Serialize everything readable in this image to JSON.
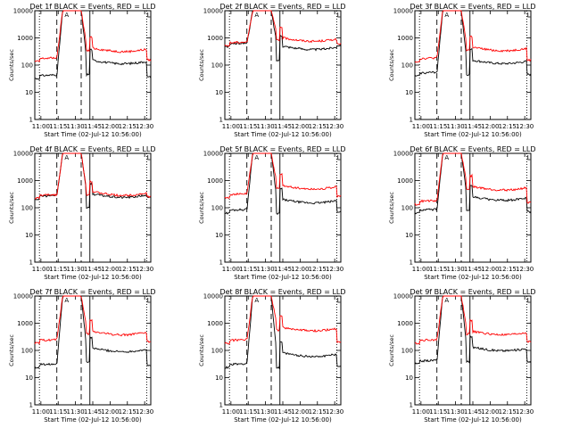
{
  "colors": {
    "events": "#000000",
    "lld": "#ff0000",
    "background": "#ffffff"
  },
  "panel_defaults": {
    "ylabel": "Counts/sec",
    "xlabel": "Start Time (02-Jul-12 10:56:00)",
    "xticks": [
      "11:00",
      "11:15",
      "11:30",
      "11:45",
      "12:00",
      "12:15",
      "12:30"
    ],
    "yticks": [
      "1",
      "10",
      "100",
      "1000",
      "10000"
    ],
    "ylim": [
      1,
      10000
    ],
    "xlim_minutes_after_start": [
      0,
      100
    ]
  },
  "chart_data": [
    {
      "type": "line",
      "title": "Det 1f BLACK = Events, RED = LLD",
      "xlabel": "Start Time (02-Jul-12 10:56:00)",
      "ylabel": "Counts/sec",
      "series": [
        {
          "name": "Events",
          "color": "black",
          "baseline": 40,
          "post_flare": 150
        },
        {
          "name": "LLD",
          "color": "red",
          "baseline": 170,
          "post_flare": 420
        }
      ],
      "peak": 10000,
      "annotation": "A"
    },
    {
      "type": "line",
      "title": "Det 2f BLACK = Events, RED = LLD",
      "xlabel": "Start Time (02-Jul-12 10:56:00)",
      "ylabel": "Counts/sec",
      "series": [
        {
          "name": "Events",
          "color": "black",
          "baseline": 600,
          "post_flare": 500
        },
        {
          "name": "LLD",
          "color": "red",
          "baseline": 650,
          "post_flare": 1000
        }
      ],
      "peak": 10000,
      "annotation": "A"
    },
    {
      "type": "line",
      "title": "Det 3f BLACK = Events, RED = LLD",
      "xlabel": "Start Time (02-Jul-12 10:56:00)",
      "ylabel": "Counts/sec",
      "series": [
        {
          "name": "Events",
          "color": "black",
          "baseline": 50,
          "post_flare": 150
        },
        {
          "name": "LLD",
          "color": "red",
          "baseline": 170,
          "post_flare": 450
        }
      ],
      "peak": 10000,
      "annotation": "A"
    },
    {
      "type": "line",
      "title": "Det 4f BLACK = Events, RED = LLD",
      "xlabel": "Start Time (02-Jul-12 10:56:00)",
      "ylabel": "Counts/sec",
      "series": [
        {
          "name": "Events",
          "color": "black",
          "baseline": 260,
          "post_flare": 320
        },
        {
          "name": "LLD",
          "color": "red",
          "baseline": 280,
          "post_flare": 380
        }
      ],
      "peak": 10000,
      "annotation": "A"
    },
    {
      "type": "line",
      "title": "Det 5f BLACK = Events, RED = LLD",
      "xlabel": "Start Time (02-Jul-12 10:56:00)",
      "ylabel": "Counts/sec",
      "series": [
        {
          "name": "Events",
          "color": "black",
          "baseline": 80,
          "post_flare": 200
        },
        {
          "name": "LLD",
          "color": "red",
          "baseline": 300,
          "post_flare": 650
        }
      ],
      "peak": 10000,
      "annotation": "A"
    },
    {
      "type": "line",
      "title": "Det 6f BLACK = Events, RED = LLD",
      "xlabel": "Start Time (02-Jul-12 10:56:00)",
      "ylabel": "Counts/sec",
      "series": [
        {
          "name": "Events",
          "color": "black",
          "baseline": 80,
          "post_flare": 250
        },
        {
          "name": "LLD",
          "color": "red",
          "baseline": 170,
          "post_flare": 600
        }
      ],
      "peak": 10000,
      "annotation": "A"
    },
    {
      "type": "line",
      "title": "Det 7f BLACK = Events, RED = LLD",
      "xlabel": "Start Time (02-Jul-12 10:56:00)",
      "ylabel": "Counts/sec",
      "series": [
        {
          "name": "Events",
          "color": "black",
          "baseline": 30,
          "post_flare": 120
        },
        {
          "name": "LLD",
          "color": "red",
          "baseline": 230,
          "post_flare": 500
        }
      ],
      "peak": 10000,
      "annotation": "A"
    },
    {
      "type": "line",
      "title": "Det 8f BLACK = Events, RED = LLD",
      "xlabel": "Start Time (02-Jul-12 10:56:00)",
      "ylabel": "Counts/sec",
      "series": [
        {
          "name": "Events",
          "color": "black",
          "baseline": 30,
          "post_flare": 80
        },
        {
          "name": "LLD",
          "color": "red",
          "baseline": 230,
          "post_flare": 700
        }
      ],
      "peak": 10000,
      "annotation": "A"
    },
    {
      "type": "line",
      "title": "Det 9f BLACK = Events, RED = LLD",
      "xlabel": "Start Time (02-Jul-12 10:56:00)",
      "ylabel": "Counts/sec",
      "series": [
        {
          "name": "Events",
          "color": "black",
          "baseline": 40,
          "post_flare": 130
        },
        {
          "name": "LLD",
          "color": "red",
          "baseline": 230,
          "post_flare": 500
        }
      ],
      "peak": 10000,
      "annotation": "A"
    }
  ]
}
